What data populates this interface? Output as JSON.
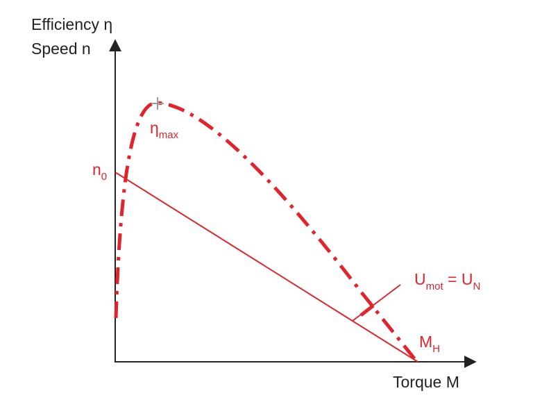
{
  "axes": {
    "y_label_1": "Efficiency η",
    "y_label_2": "Speed n",
    "x_label": "Torque M"
  },
  "annotations": {
    "n0": {
      "main": "n",
      "sub": "0"
    },
    "eta_max": {
      "main": "η",
      "sub": "max"
    },
    "u_mot": {
      "main": "U",
      "sub": "mot",
      "rel": " = U",
      "sub2": "N"
    },
    "m_h": {
      "main": "M",
      "sub": "H"
    }
  }
}
